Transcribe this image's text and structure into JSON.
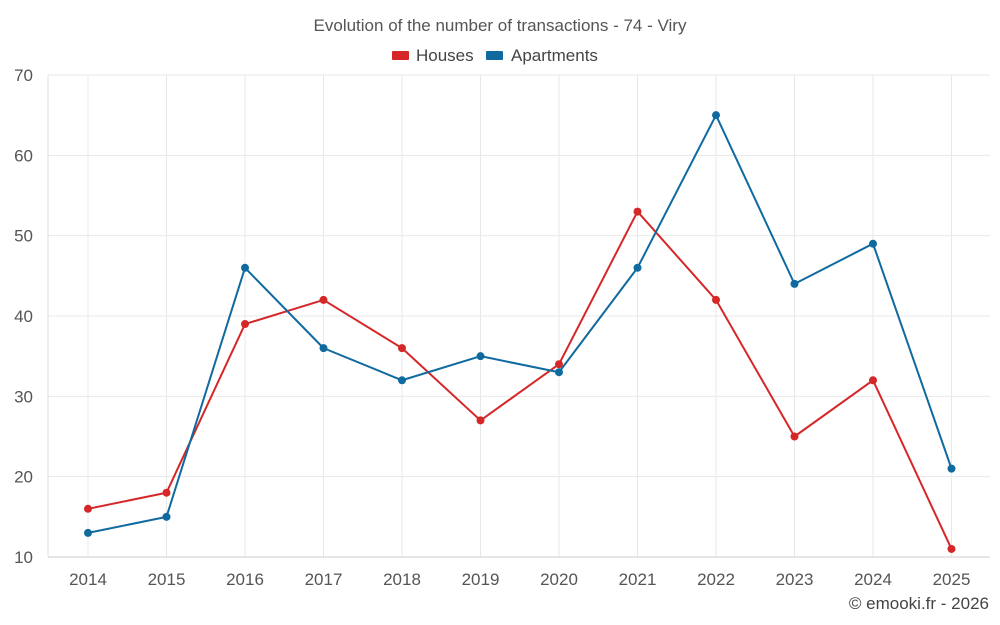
{
  "chart_data": {
    "type": "line",
    "title": "Evolution of the number of transactions - 74 - Viry",
    "categories": [
      "2014",
      "2015",
      "2016",
      "2017",
      "2018",
      "2019",
      "2020",
      "2021",
      "2022",
      "2023",
      "2024",
      "2025"
    ],
    "series": [
      {
        "name": "Houses",
        "color": "#d62728",
        "values": [
          16,
          18,
          39,
          42,
          36,
          27,
          34,
          53,
          42,
          25,
          32,
          11
        ]
      },
      {
        "name": "Apartments",
        "color": "#0f6aa0",
        "values": [
          13,
          15,
          46,
          36,
          32,
          35,
          33,
          46,
          65,
          44,
          49,
          21
        ]
      }
    ],
    "ylim": [
      10,
      70
    ],
    "yticks": [
      10,
      20,
      30,
      40,
      50,
      60,
      70
    ],
    "xlabel": "",
    "ylabel": "",
    "grid": true,
    "legend": "top-center"
  },
  "credit": "© emooki.fr - 2026"
}
